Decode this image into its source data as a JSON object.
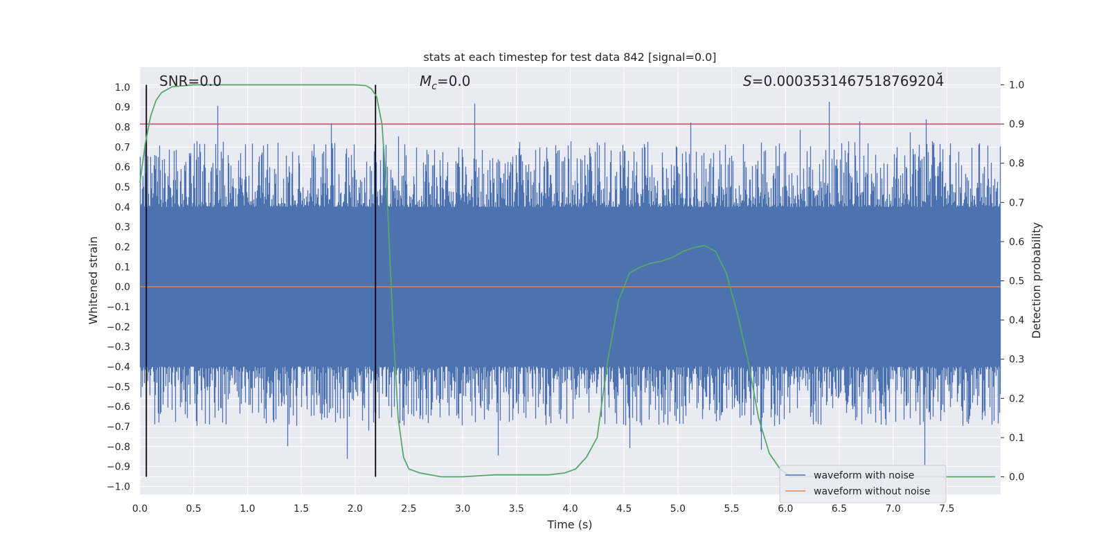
{
  "chart_data": {
    "type": "line",
    "title": "stats at each timestep for test data 842 [signal=0.0]",
    "xlabel": "Time (s)",
    "ylabel": "Whitened strain",
    "y2label": "Detection probability",
    "xlim": [
      0.0,
      8.0
    ],
    "ylim": [
      -1.04,
      1.1
    ],
    "y2lim": [
      -0.045,
      1.045
    ],
    "x_ticks": [
      "0.0",
      "0.5",
      "1.0",
      "1.5",
      "2.0",
      "2.5",
      "3.0",
      "3.5",
      "4.0",
      "4.5",
      "5.0",
      "5.5",
      "6.0",
      "6.5",
      "7.0",
      "7.5"
    ],
    "y_ticks": [
      "1.0",
      "0.9",
      "0.8",
      "0.7",
      "0.6",
      "0.5",
      "0.4",
      "0.3",
      "0.2",
      "0.1",
      "0.0",
      "−0.1",
      "−0.2",
      "−0.3",
      "−0.4",
      "−0.5",
      "−0.6",
      "−0.7",
      "−0.8",
      "−0.9",
      "−1.0"
    ],
    "y2_ticks": [
      "1.0",
      "0.9",
      "0.8",
      "0.7",
      "0.6",
      "0.5",
      "0.4",
      "0.3",
      "0.2",
      "0.1",
      "0.0"
    ],
    "annotations": {
      "snr": "SNR=0.0",
      "mc_symbol": "M",
      "mc_sub": "c",
      "mc_value": "=0.0",
      "s_symbol": "S",
      "s_value": "=0.0003531467518769204̆"
    },
    "threshold_line": {
      "y2": 0.9,
      "color": "#c44e52"
    },
    "vertical_markers": [
      0.06,
      2.19
    ],
    "noise_envelope": {
      "upper_base": 0.4,
      "lower_base": -0.4,
      "peak_max": 1.0,
      "trough_min": -0.94
    },
    "series": [
      {
        "name": "waveform with noise",
        "color": "#4c72b0",
        "axis": "left",
        "description_values": "noise between about -0.94 and 1.0"
      },
      {
        "name": "waveform without noise",
        "color": "#dd8452",
        "axis": "left",
        "values_constant": 0.0
      },
      {
        "name": "detection probability",
        "color": "#55a868",
        "axis": "right",
        "x": [
          0.0,
          0.05,
          0.1,
          0.15,
          0.2,
          0.3,
          0.5,
          1.0,
          1.5,
          2.0,
          2.1,
          2.15,
          2.2,
          2.25,
          2.3,
          2.35,
          2.4,
          2.45,
          2.5,
          2.6,
          2.8,
          3.0,
          3.3,
          3.6,
          3.8,
          3.95,
          4.05,
          4.15,
          4.25,
          4.35,
          4.45,
          4.55,
          4.65,
          4.75,
          4.85,
          4.95,
          5.05,
          5.15,
          5.25,
          5.35,
          5.45,
          5.55,
          5.65,
          5.75,
          5.85,
          5.95,
          6.05,
          6.5,
          7.0,
          7.5,
          7.95
        ],
        "values": [
          0.75,
          0.85,
          0.92,
          0.96,
          0.98,
          0.995,
          1.0,
          1.0,
          1.0,
          1.0,
          0.998,
          0.99,
          0.97,
          0.9,
          0.7,
          0.4,
          0.15,
          0.05,
          0.02,
          0.01,
          0.0,
          0.0,
          0.005,
          0.005,
          0.005,
          0.01,
          0.02,
          0.05,
          0.1,
          0.3,
          0.45,
          0.52,
          0.535,
          0.545,
          0.55,
          0.56,
          0.575,
          0.585,
          0.59,
          0.575,
          0.52,
          0.42,
          0.3,
          0.15,
          0.06,
          0.02,
          0.0,
          0.0,
          0.0,
          0.0,
          0.0
        ]
      }
    ],
    "legend": {
      "position": "lower right",
      "entries": [
        "waveform with noise",
        "waveform without noise"
      ]
    }
  }
}
